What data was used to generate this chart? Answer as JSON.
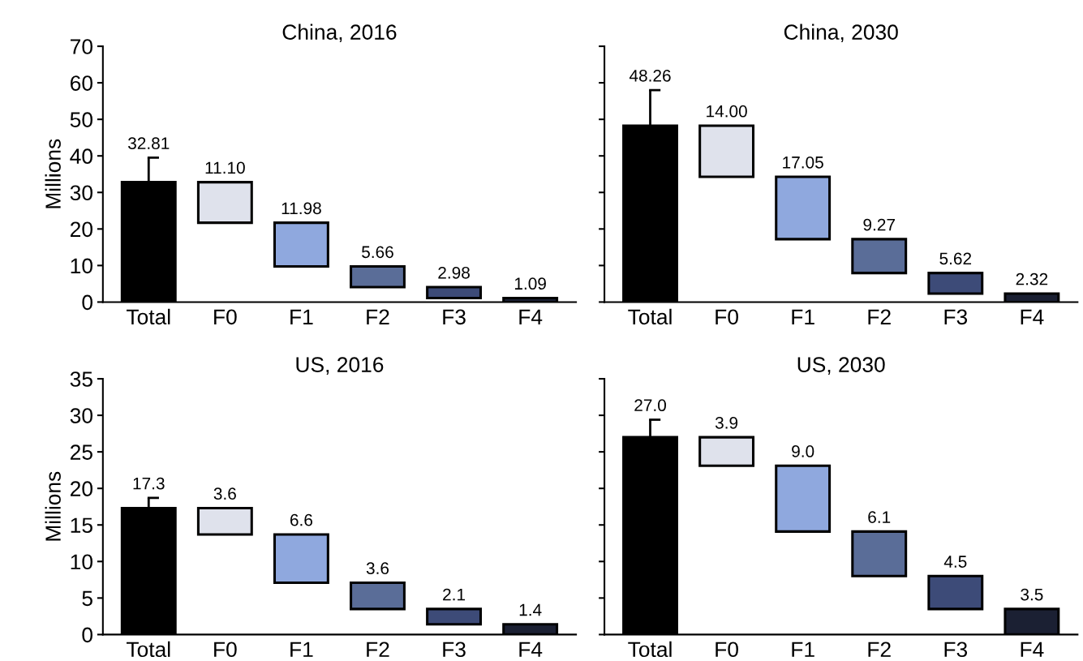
{
  "chart_data": [
    {
      "type": "bar",
      "title": "China, 2016",
      "ylabel": "Millions",
      "categories": [
        "Total",
        "F0",
        "F1",
        "F2",
        "F3",
        "F4"
      ],
      "ylim": [
        0,
        70
      ],
      "yticks": [
        0,
        10,
        20,
        30,
        40,
        50,
        60,
        70
      ],
      "values": [
        32.81,
        11.1,
        11.98,
        5.66,
        2.98,
        1.09
      ],
      "base": [
        0,
        21.71,
        9.73,
        4.07,
        1.09,
        0
      ],
      "value_labels": [
        "32.81",
        "11.10",
        "11.98",
        "5.66",
        "2.98",
        "1.09"
      ],
      "errors": [
        [
          32.81,
          39.5
        ],
        null,
        null,
        null,
        null,
        null
      ],
      "colors": [
        "#000000",
        "#dfe2ec",
        "#8fa8de",
        "#5a6d98",
        "#3d4b78",
        "#1b2033"
      ]
    },
    {
      "type": "bar",
      "title": "China, 2030",
      "categories": [
        "Total",
        "F0",
        "F1",
        "F2",
        "F3",
        "F4"
      ],
      "ylim": [
        0,
        70
      ],
      "yticks": [
        0,
        10,
        20,
        30,
        40,
        50,
        60,
        70
      ],
      "tick_labels": "x",
      "values": [
        48.26,
        14.0,
        17.05,
        9.27,
        5.62,
        2.32
      ],
      "base": [
        0,
        34.26,
        17.21,
        7.94,
        2.32,
        0
      ],
      "value_labels": [
        "48.26",
        "14.00",
        "17.05",
        "9.27",
        "5.62",
        "2.32"
      ],
      "errors": [
        [
          48.26,
          58.0
        ],
        null,
        null,
        null,
        null,
        null
      ],
      "colors": [
        "#000000",
        "#dfe2ec",
        "#8fa8de",
        "#5a6d98",
        "#3d4b78",
        "#1b2033"
      ]
    },
    {
      "type": "bar",
      "title": "US, 2016",
      "ylabel": "Millions",
      "categories": [
        "Total",
        "F0",
        "F1",
        "F2",
        "F3",
        "F4"
      ],
      "ylim": [
        0,
        35
      ],
      "yticks": [
        0,
        5,
        10,
        15,
        20,
        25,
        30,
        35
      ],
      "values": [
        17.3,
        3.6,
        6.6,
        3.6,
        2.1,
        1.4
      ],
      "base": [
        0,
        13.7,
        7.1,
        3.5,
        1.4,
        0
      ],
      "value_labels": [
        "17.3",
        "3.6",
        "6.6",
        "3.6",
        "2.1",
        "1.4"
      ],
      "errors": [
        [
          17.3,
          18.7
        ],
        null,
        null,
        null,
        null,
        null
      ],
      "colors": [
        "#000000",
        "#dfe2ec",
        "#8fa8de",
        "#5a6d98",
        "#3d4b78",
        "#1b2033"
      ]
    },
    {
      "type": "bar",
      "title": "US, 2030",
      "categories": [
        "Total",
        "F0",
        "F1",
        "F2",
        "F3",
        "F4"
      ],
      "ylim": [
        0,
        35
      ],
      "yticks": [
        0,
        5,
        10,
        15,
        20,
        25,
        30,
        35
      ],
      "tick_labels": "x",
      "values": [
        27.0,
        3.9,
        9.0,
        6.1,
        4.5,
        3.5
      ],
      "base": [
        0,
        23.1,
        14.1,
        8.0,
        3.5,
        0
      ],
      "value_labels": [
        "27.0",
        "3.9",
        "9.0",
        "6.1",
        "4.5",
        "3.5"
      ],
      "errors": [
        [
          27.0,
          29.4
        ],
        null,
        null,
        null,
        null,
        null
      ],
      "colors": [
        "#000000",
        "#dfe2ec",
        "#8fa8de",
        "#5a6d98",
        "#3d4b78",
        "#1b2033"
      ]
    }
  ]
}
